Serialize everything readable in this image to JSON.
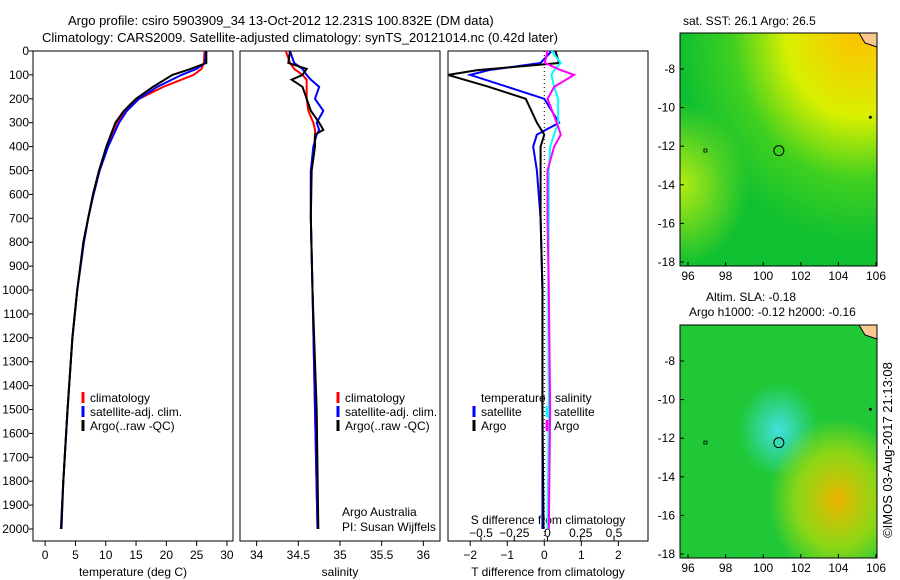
{
  "title_line1": "Argo profile: csiro 5903909_34 13-Oct-2012 12.231S 100.832E (DM data)",
  "title_line2": "Climatology: CARS2009. Satellite-adjusted climatology: synTS_20121014.nc (0.42d later)",
  "copyright": "©IMOS 03-Aug-2017 21:13:08",
  "colors": {
    "clim": "#ff0000",
    "sat": "#0000ff",
    "argo": "#000000",
    "sal_sat": "#00ffff",
    "sal_argo": "#ff00ff"
  },
  "chart_data": [
    {
      "type": "line",
      "xlabel": "temperature (deg C)",
      "ylabel": "",
      "xlim": [
        -2,
        31
      ],
      "ylim": [
        2050,
        0
      ],
      "xticks": [
        0,
        5,
        10,
        15,
        20,
        25,
        30
      ],
      "yticks": [
        0,
        100,
        200,
        300,
        400,
        500,
        600,
        700,
        800,
        900,
        1000,
        1100,
        1200,
        1300,
        1400,
        1500,
        1600,
        1700,
        1800,
        1900,
        2000
      ],
      "depth": [
        0,
        50,
        75,
        100,
        150,
        200,
        250,
        300,
        400,
        500,
        600,
        700,
        800,
        1000,
        1200,
        1500,
        1800,
        2000
      ],
      "series": [
        {
          "name": "climatology",
          "color": "clim",
          "values": [
            26.3,
            26.2,
            25.8,
            24.5,
            19.5,
            15.5,
            13.2,
            11.8,
            10.2,
            8.9,
            7.9,
            7.1,
            6.4,
            5.3,
            4.5,
            3.7,
            3.0,
            2.6
          ]
        },
        {
          "name": "satellite-adj. clim.",
          "color": "sat",
          "values": [
            26.5,
            26.4,
            25.0,
            22.5,
            18.5,
            15.5,
            13.5,
            12.2,
            10.4,
            9.0,
            8.0,
            7.1,
            6.4,
            5.3,
            4.5,
            3.7,
            3.0,
            2.6
          ]
        },
        {
          "name": "Argo(..raw -QC)",
          "color": "argo",
          "values": [
            26.6,
            26.6,
            24.0,
            21.0,
            17.8,
            15.0,
            13.0,
            11.6,
            10.1,
            8.9,
            7.9,
            7.1,
            6.3,
            5.3,
            4.5,
            3.7,
            3.0,
            2.7
          ]
        }
      ],
      "legend": "bottom-right"
    },
    {
      "type": "line",
      "xlabel": "salinity",
      "ylabel": "",
      "xlim": [
        33.8,
        36.2
      ],
      "ylim": [
        2050,
        0
      ],
      "xticks": [
        34,
        34.5,
        35,
        35.5,
        36
      ],
      "depth": [
        0,
        50,
        75,
        100,
        120,
        150,
        200,
        250,
        300,
        330,
        350,
        400,
        500,
        700,
        1000,
        1500,
        2000
      ],
      "series": [
        {
          "name": "climatology",
          "color": "clim",
          "values": [
            34.35,
            34.4,
            34.45,
            34.55,
            34.6,
            34.6,
            34.6,
            34.62,
            34.68,
            34.7,
            34.7,
            34.69,
            34.65,
            34.65,
            34.67,
            34.7,
            34.73
          ]
        },
        {
          "name": "satellite-adj. clim.",
          "color": "sat",
          "values": [
            34.4,
            34.45,
            34.55,
            34.6,
            34.65,
            34.75,
            34.7,
            34.8,
            34.72,
            34.75,
            34.72,
            34.68,
            34.65,
            34.65,
            34.67,
            34.7,
            34.73
          ]
        },
        {
          "name": "Argo(..raw -QC)",
          "color": "argo",
          "values": [
            34.4,
            34.38,
            34.6,
            34.55,
            34.42,
            34.55,
            34.6,
            34.65,
            34.75,
            34.8,
            34.7,
            34.7,
            34.66,
            34.65,
            34.67,
            34.72,
            34.74
          ]
        }
      ],
      "legend": "bottom-right",
      "annotations": [
        "Argo Australia",
        "PI: Susan Wijffels"
      ]
    },
    {
      "type": "line",
      "xlabel": "T difference from climatology",
      "xlabel2": "S difference from climatology",
      "xlim": [
        -2.6,
        2.8
      ],
      "ylim": [
        2050,
        0
      ],
      "xticks": [
        -2,
        -1,
        0,
        1,
        2
      ],
      "xticks2": [
        -0.5,
        -0.25,
        0,
        0.25,
        0.5
      ],
      "depth": [
        0,
        50,
        80,
        100,
        150,
        200,
        300,
        350,
        400,
        500,
        700,
        1000,
        1500,
        2000
      ],
      "series": [
        {
          "name": "temperature satellite",
          "color": "sat",
          "axis": "T",
          "values": [
            0.2,
            -0.1,
            -1.5,
            -2.0,
            -1.0,
            0,
            0.4,
            -0.2,
            -0.3,
            -0.2,
            -0.1,
            -0.05,
            -0.05,
            -0.05
          ]
        },
        {
          "name": "temperature Argo",
          "color": "argo",
          "axis": "T",
          "values": [
            0.3,
            0.4,
            -1.8,
            -2.6,
            -1.5,
            -0.5,
            -0.2,
            0,
            -0.1,
            -0.1,
            -0.1,
            -0.05,
            -0.05,
            -0.02
          ]
        },
        {
          "name": "salinity satellite",
          "color": "sal_sat",
          "axis": "S",
          "values": [
            0.03,
            0.1,
            0.05,
            0.03,
            0.05,
            0.08,
            0.08,
            0.05,
            0.02,
            0.01,
            0.01,
            0.005,
            0.01,
            0.0
          ]
        },
        {
          "name": "salinity Argo",
          "color": "sal_argo",
          "axis": "S",
          "values": [
            0.0,
            -0.02,
            0.1,
            0.2,
            0.05,
            0.0,
            0.07,
            0.1,
            0.05,
            0.0,
            0.0,
            0.01,
            0.02,
            0.01
          ]
        }
      ],
      "legend_headers": [
        "temperature",
        "salinity"
      ],
      "legend_labels": [
        "satellite",
        "Argo",
        "satellite",
        "Argo"
      ]
    }
  ],
  "maps": [
    {
      "title": "sat. SST: 26.1  Argo: 26.5",
      "lon_ticks": [
        96,
        98,
        100,
        102,
        104,
        106
      ],
      "lat_ticks": [
        -8,
        -10,
        -12,
        -14,
        -16,
        -18
      ]
    },
    {
      "title": "Altim. SLA: -0.18",
      "title2": "Argo h1000: -0.12 h2000: -0.16",
      "lon_ticks": [
        96,
        98,
        100,
        102,
        104,
        106
      ],
      "lat_ticks": [
        -8,
        -10,
        -12,
        -14,
        -16,
        -18
      ]
    }
  ],
  "float_position": {
    "lon": 100.832,
    "lat": -12.231
  }
}
